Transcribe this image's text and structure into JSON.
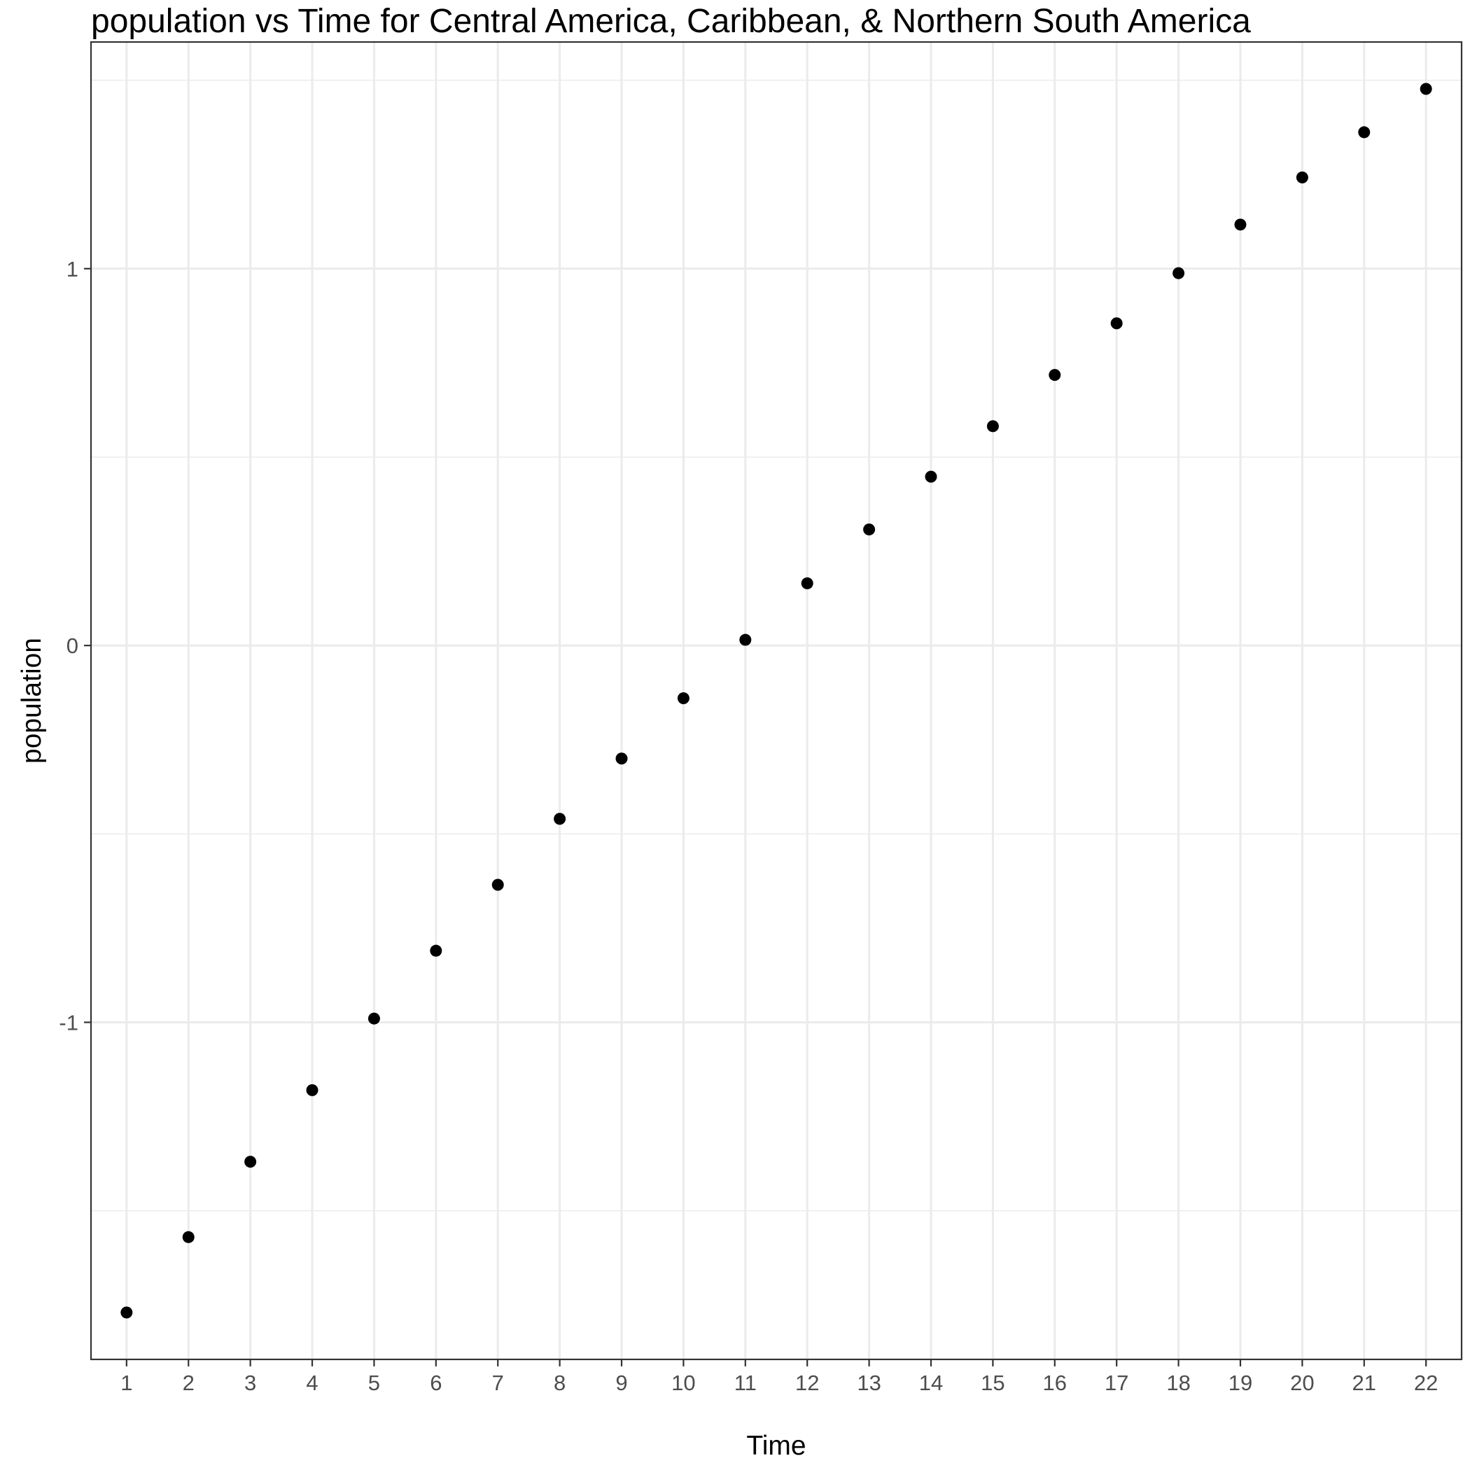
{
  "chart_data": {
    "type": "scatter",
    "title": "population  vs Time for Central America, Caribbean, & Northern South America",
    "xlabel": "Time",
    "ylabel": "population",
    "x": [
      1,
      2,
      3,
      4,
      5,
      6,
      7,
      8,
      9,
      10,
      11,
      12,
      13,
      14,
      15,
      16,
      17,
      18,
      19,
      20,
      21,
      22
    ],
    "y": [
      -1.77,
      -1.57,
      -1.37,
      -1.18,
      -0.99,
      -0.81,
      -0.635,
      -0.46,
      -0.3,
      -0.14,
      0.015,
      0.165,
      0.308,
      0.448,
      0.582,
      0.718,
      0.855,
      0.988,
      1.117,
      1.242,
      1.362,
      1.477
    ],
    "xticks": [
      "1",
      "2",
      "3",
      "4",
      "5",
      "6",
      "7",
      "8",
      "9",
      "10",
      "11",
      "12",
      "13",
      "14",
      "15",
      "16",
      "17",
      "18",
      "19",
      "20",
      "21",
      "22"
    ],
    "yticks": [
      "-1",
      "0",
      "1"
    ],
    "xlim": [
      0.425,
      22.575
    ],
    "ylim": [
      -1.8945,
      1.6015
    ],
    "grid": true,
    "point_color": "#000000",
    "theme": "black-and-white"
  }
}
